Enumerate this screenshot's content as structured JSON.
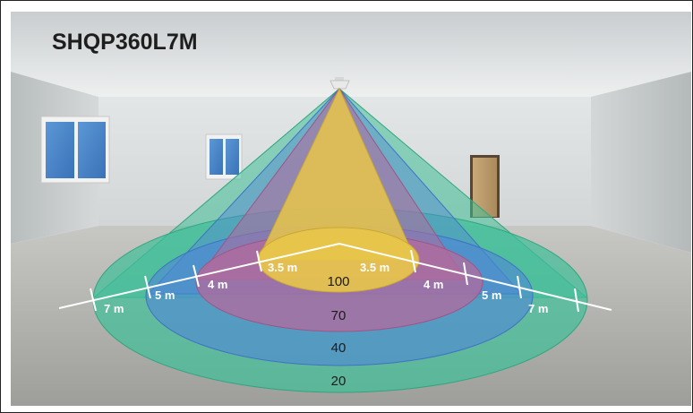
{
  "title": "SHQP360L7M",
  "zones": {
    "zone_100": "100",
    "zone_70": "70",
    "zone_40": "40",
    "zone_20": "20"
  },
  "dimensions": {
    "left": [
      "7 m",
      "5 m",
      "4 m",
      "3.5 m"
    ],
    "right": [
      "3.5 m",
      "4 m",
      "5 m",
      "7 m"
    ]
  },
  "colors": {
    "zone_100": "#e8c64a",
    "zone_70": "#b46a9c",
    "zone_40": "#4f86d8",
    "zone_20": "#3fbf98"
  }
}
